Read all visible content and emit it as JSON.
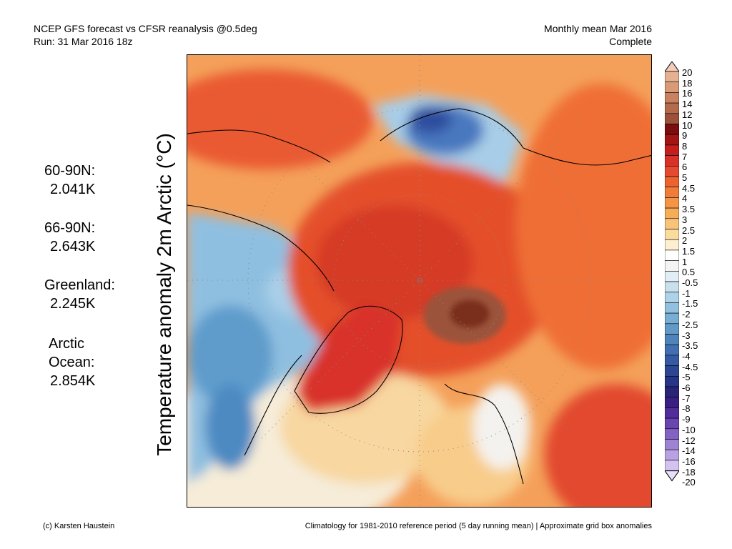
{
  "header": {
    "title_line1": "NCEP GFS forecast vs CFSR reanalysis @0.5deg",
    "title_line2": "Run: 31 Mar 2016 18z",
    "period_line1": "Monthly mean Mar 2016",
    "period_line2": "Complete"
  },
  "stats": [
    {
      "label": "60-90N:",
      "value": "2.041K"
    },
    {
      "label": "66-90N:",
      "value": "2.643K"
    },
    {
      "label": "Greenland:",
      "value": "2.245K"
    },
    {
      "label": "Arctic",
      "label2": "Ocean:",
      "value": "2.854K"
    }
  ],
  "axis_label": "Temperature anomaly 2m Arctic (°C)",
  "colorbar": {
    "ticks": [
      "20",
      "18",
      "16",
      "14",
      "12",
      "10",
      "9",
      "8",
      "7",
      "6",
      "5",
      "4.5",
      "4",
      "3.5",
      "3",
      "2.5",
      "2",
      "1.5",
      "1",
      "0.5",
      "-0.5",
      "-1",
      "-1.5",
      "-2",
      "-2.5",
      "-3",
      "-3.5",
      "-4",
      "-4.5",
      "-5",
      "-6",
      "-7",
      "-8",
      "-9",
      "-10",
      "-12",
      "-14",
      "-16",
      "-18",
      "-20"
    ],
    "colors": [
      "#f3cdb8",
      "#e6b092",
      "#d99a78",
      "#c88260",
      "#b46a4c",
      "#9c523a",
      "#7a0d0d",
      "#a31414",
      "#c41e1e",
      "#d9302a",
      "#e54a30",
      "#ec6330",
      "#f07c3a",
      "#f49447",
      "#f7ac58",
      "#f9c47a",
      "#fbdc9f",
      "#fdefcf",
      "#ffffff",
      "#f4f4f4",
      "#e2eef6",
      "#c9e1ef",
      "#aed2e8",
      "#92c1df",
      "#78aed3",
      "#6299c7",
      "#5083bb",
      "#416fb0",
      "#3559a2",
      "#2c4694",
      "#263586",
      "#2a2477",
      "#3a1e82",
      "#522c9a",
      "#6a44b0",
      "#8462c4",
      "#9e82d4",
      "#b8a2e2",
      "#d2c4ee",
      "#e8dff8"
    ]
  },
  "footer": {
    "credit": "(c) Karsten Haustein",
    "note": "Climatology for 1981-2010 reference period (5 day running mean) | Approximate grid box anomalies"
  }
}
